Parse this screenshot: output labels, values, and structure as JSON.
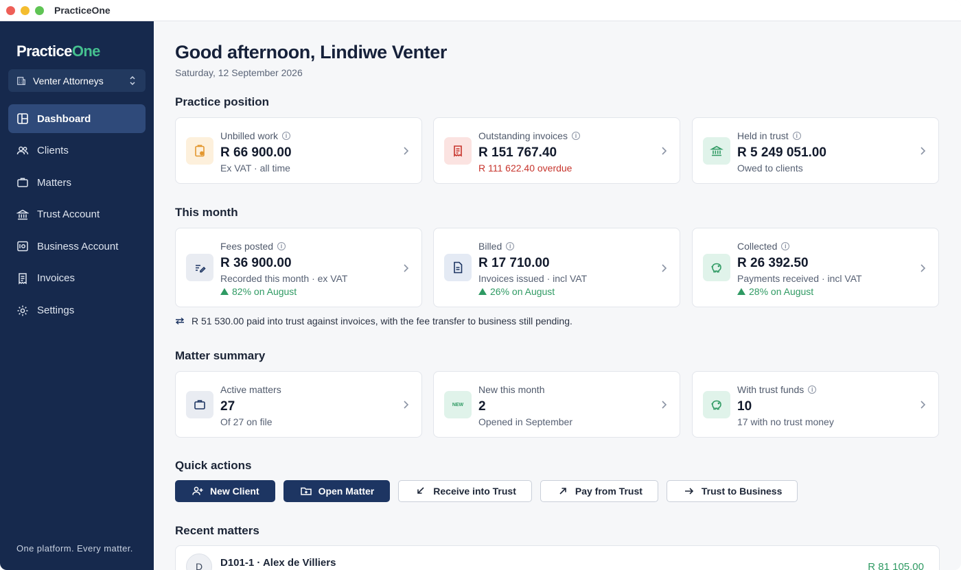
{
  "window": {
    "title": "PracticeOne"
  },
  "sidebar": {
    "logo_main": "Practice",
    "logo_accent": "One",
    "firm": "Venter Attorneys",
    "items": [
      {
        "label": "Dashboard",
        "icon": "dashboard-icon"
      },
      {
        "label": "Clients",
        "icon": "users-icon"
      },
      {
        "label": "Matters",
        "icon": "briefcase-icon"
      },
      {
        "label": "Trust Account",
        "icon": "bank-icon"
      },
      {
        "label": "Business Account",
        "icon": "safe-icon"
      },
      {
        "label": "Invoices",
        "icon": "receipt-icon"
      },
      {
        "label": "Settings",
        "icon": "gear-icon"
      }
    ],
    "tagline": "One platform. Every matter."
  },
  "header": {
    "greeting": "Good afternoon, Lindiwe Venter",
    "date": "Saturday, 12 September 2026"
  },
  "practice_position": {
    "title": "Practice position",
    "cards": [
      {
        "label": "Unbilled work",
        "value": "R 66 900.00",
        "sub": "Ex VAT · all time",
        "icon": "clipboard-icon"
      },
      {
        "label": "Outstanding invoices",
        "value": "R 151 767.40",
        "sub": "R 111 622.40 overdue",
        "icon": "receipt-icon"
      },
      {
        "label": "Held in trust",
        "value": "R 5 249 051.00",
        "sub": "Owed to clients",
        "icon": "bank-icon"
      }
    ]
  },
  "this_month": {
    "title": "This month",
    "cards": [
      {
        "label": "Fees posted",
        "value": "R 36 900.00",
        "sub": "Recorded this month · ex VAT",
        "trend": "82% on August",
        "icon": "pen-icon"
      },
      {
        "label": "Billed",
        "value": "R 17 710.00",
        "sub": "Invoices issued · incl VAT",
        "trend": "26% on August",
        "icon": "document-icon"
      },
      {
        "label": "Collected",
        "value": "R 26 392.50",
        "sub": "Payments received · incl VAT",
        "trend": "28% on August",
        "icon": "piggy-bank-icon"
      }
    ],
    "note": "R 51 530.00 paid into trust against invoices, with the fee transfer to business still pending."
  },
  "matter_summary": {
    "title": "Matter summary",
    "cards": [
      {
        "label": "Active matters",
        "value": "27",
        "sub": "Of 27 on file",
        "icon": "briefcase-icon"
      },
      {
        "label": "New this month",
        "value": "2",
        "sub": "Opened in September",
        "icon": "new-badge-icon",
        "badge": "NEW"
      },
      {
        "label": "With trust funds",
        "value": "10",
        "sub": "17 with no trust money",
        "icon": "piggy-bank-icon"
      }
    ]
  },
  "quick_actions": {
    "title": "Quick actions",
    "buttons": [
      {
        "label": "New Client",
        "icon": "add-user-icon"
      },
      {
        "label": "Open Matter",
        "icon": "folder-plus-icon"
      },
      {
        "label": "Receive into Trust",
        "icon": "arrow-down-left-icon"
      },
      {
        "label": "Pay from Trust",
        "icon": "arrow-up-right-icon"
      },
      {
        "label": "Trust to Business",
        "icon": "arrow-right-icon"
      }
    ]
  },
  "recent_matters": {
    "title": "Recent matters",
    "items": [
      {
        "avatar": "D",
        "title": "D101-1 · Alex de Villiers",
        "amount": "R 81 105.00"
      }
    ]
  },
  "colors": {
    "sidebar": "#16294d",
    "accent_green": "#45c08f",
    "positive": "#2f9a63",
    "negative": "#c7342c",
    "primary_button": "#1d3562"
  }
}
